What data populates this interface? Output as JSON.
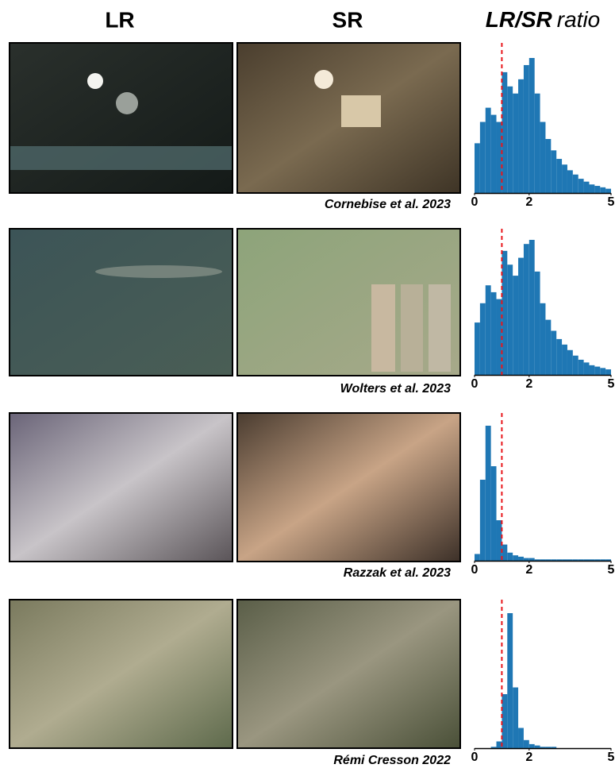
{
  "header": {
    "lr": "LR",
    "sr": "SR",
    "ratio_bold": "LR/SR",
    "ratio_rest": "ratio"
  },
  "rows": [
    {
      "caption": "Cornebise et al. 2023",
      "histogram": {
        "type": "histogram",
        "color": "#1f77b4",
        "reference": 1,
        "reference_color": "#e8161b",
        "xlim": [
          0,
          5
        ],
        "xticks": [
          0,
          2,
          5
        ],
        "bins": [
          0,
          0.2,
          0.4,
          0.6,
          0.8,
          1,
          1.2,
          1.4,
          1.6,
          1.8,
          2,
          2.2,
          2.4,
          2.6,
          2.8,
          3,
          3.2,
          3.4,
          3.6,
          3.8,
          4,
          4.2,
          4.4,
          4.6,
          4.8,
          5
        ],
        "counts": [
          35,
          50,
          60,
          55,
          50,
          85,
          75,
          70,
          80,
          90,
          95,
          70,
          50,
          38,
          30,
          24,
          20,
          16,
          13,
          10,
          8,
          6,
          5,
          4,
          3
        ]
      }
    },
    {
      "caption": "Wolters et al. 2023",
      "histogram": {
        "type": "histogram",
        "color": "#1f77b4",
        "reference": 1,
        "reference_color": "#e8161b",
        "xlim": [
          0,
          5
        ],
        "xticks": [
          0,
          2,
          5
        ],
        "bins": [
          0,
          0.2,
          0.4,
          0.6,
          0.8,
          1,
          1.2,
          1.4,
          1.6,
          1.8,
          2,
          2.2,
          2.4,
          2.6,
          2.8,
          3,
          3.2,
          3.4,
          3.6,
          3.8,
          4,
          4.2,
          4.4,
          4.6,
          4.8,
          5
        ],
        "counts": [
          38,
          52,
          65,
          60,
          55,
          90,
          80,
          72,
          85,
          95,
          98,
          75,
          52,
          40,
          32,
          26,
          22,
          18,
          14,
          11,
          9,
          7,
          6,
          5,
          4
        ]
      }
    },
    {
      "caption": "Razzak et al. 2023",
      "histogram": {
        "type": "histogram",
        "color": "#1f77b4",
        "reference": 1,
        "reference_color": "#e8161b",
        "xlim": [
          0,
          5
        ],
        "xticks": [
          0,
          2,
          5
        ],
        "bins": [
          0,
          0.2,
          0.4,
          0.6,
          0.8,
          1,
          1.2,
          1.4,
          1.6,
          1.8,
          2,
          2.2,
          2.4,
          2.6,
          2.8,
          3,
          3.2,
          3.4,
          3.6,
          3.8,
          4,
          4.2,
          4.4,
          4.6,
          4.8,
          5
        ],
        "counts": [
          5,
          60,
          100,
          70,
          30,
          12,
          6,
          4,
          3,
          2,
          2,
          1,
          1,
          1,
          1,
          1,
          1,
          1,
          1,
          1,
          1,
          1,
          1,
          1,
          1
        ]
      }
    },
    {
      "caption": "Rémi Cresson 2022",
      "histogram": {
        "type": "histogram",
        "color": "#1f77b4",
        "reference": 1,
        "reference_color": "#e8161b",
        "xlim": [
          0,
          5
        ],
        "xticks": [
          0,
          2,
          5
        ],
        "bins": [
          0,
          0.2,
          0.4,
          0.6,
          0.8,
          1,
          1.2,
          1.4,
          1.6,
          1.8,
          2,
          2.2,
          2.4,
          2.6,
          2.8,
          3,
          3.2,
          3.4,
          3.6,
          3.8,
          4,
          4.2,
          4.4,
          4.6,
          4.8,
          5
        ],
        "counts": [
          0,
          0,
          0,
          1,
          5,
          40,
          100,
          45,
          15,
          6,
          3,
          2,
          1,
          1,
          1,
          0,
          0,
          0,
          0,
          0,
          0,
          0,
          0,
          0,
          0
        ]
      }
    }
  ]
}
